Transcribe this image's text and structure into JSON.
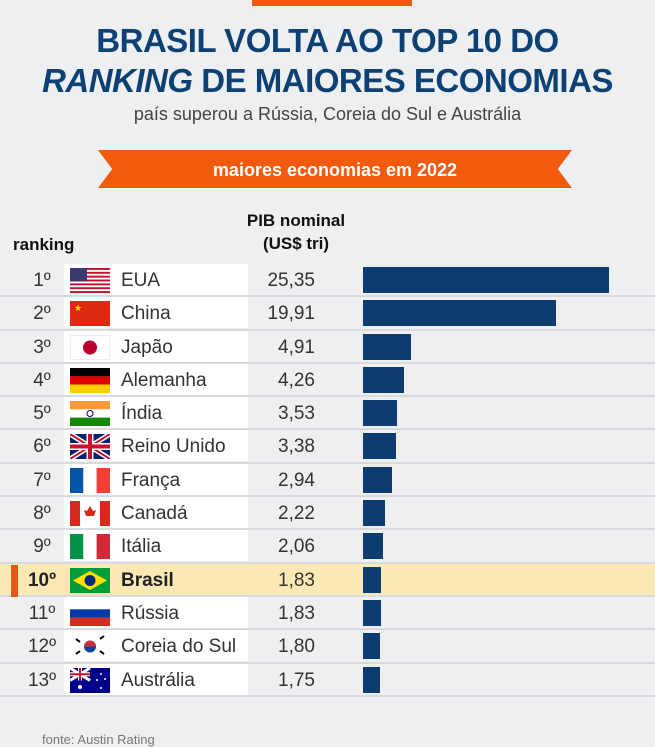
{
  "title_line1": "BRASIL VOLTA AO TOP 10 DO",
  "title_line2_italic": "RANKING",
  "title_line2_rest": " DE MAIORES ECONOMIAS",
  "subtitle": "país superou a Rússia, Coreia do Sul e Austrália",
  "ribbon": "maiores economias em 2022",
  "source": "fonte: Austin Rating",
  "colors": {
    "title": "#0d4174",
    "accent": "#f25a0e",
    "bar": "#0d3d70",
    "highlight": "#fbe9b5"
  },
  "chart_data": {
    "type": "bar",
    "title": "maiores economias em 2022",
    "column_headers": {
      "rank": "ranking",
      "value_line1": "PIB nominal",
      "value_line2": "(US$ tri)"
    },
    "highlight": "Brasil",
    "xlim": [
      0,
      25.35
    ],
    "rows": [
      {
        "rank": "1º",
        "country": "EUA",
        "flag": "us-flag-icon",
        "value": 25.35,
        "label": "25,35"
      },
      {
        "rank": "2º",
        "country": "China",
        "flag": "cn-flag-icon",
        "value": 19.91,
        "label": "19,91"
      },
      {
        "rank": "3º",
        "country": "Japão",
        "flag": "jp-flag-icon",
        "value": 4.91,
        "label": "4,91"
      },
      {
        "rank": "4º",
        "country": "Alemanha",
        "flag": "de-flag-icon",
        "value": 4.26,
        "label": "4,26"
      },
      {
        "rank": "5º",
        "country": "Índia",
        "flag": "in-flag-icon",
        "value": 3.53,
        "label": "3,53"
      },
      {
        "rank": "6º",
        "country": "Reino Unido",
        "flag": "gb-flag-icon",
        "value": 3.38,
        "label": "3,38"
      },
      {
        "rank": "7º",
        "country": "França",
        "flag": "fr-flag-icon",
        "value": 2.94,
        "label": "2,94"
      },
      {
        "rank": "8º",
        "country": "Canadá",
        "flag": "ca-flag-icon",
        "value": 2.22,
        "label": "2,22"
      },
      {
        "rank": "9º",
        "country": "Itália",
        "flag": "it-flag-icon",
        "value": 2.06,
        "label": "2,06"
      },
      {
        "rank": "10º",
        "country": "Brasil",
        "flag": "br-flag-icon",
        "value": 1.83,
        "label": "1,83"
      },
      {
        "rank": "11º",
        "country": "Rússia",
        "flag": "ru-flag-icon",
        "value": 1.83,
        "label": "1,83"
      },
      {
        "rank": "12º",
        "country": "Coreia do Sul",
        "flag": "kr-flag-icon",
        "value": 1.8,
        "label": "1,80"
      },
      {
        "rank": "13º",
        "country": "Austrália",
        "flag": "au-flag-icon",
        "value": 1.75,
        "label": "1,75"
      }
    ]
  }
}
